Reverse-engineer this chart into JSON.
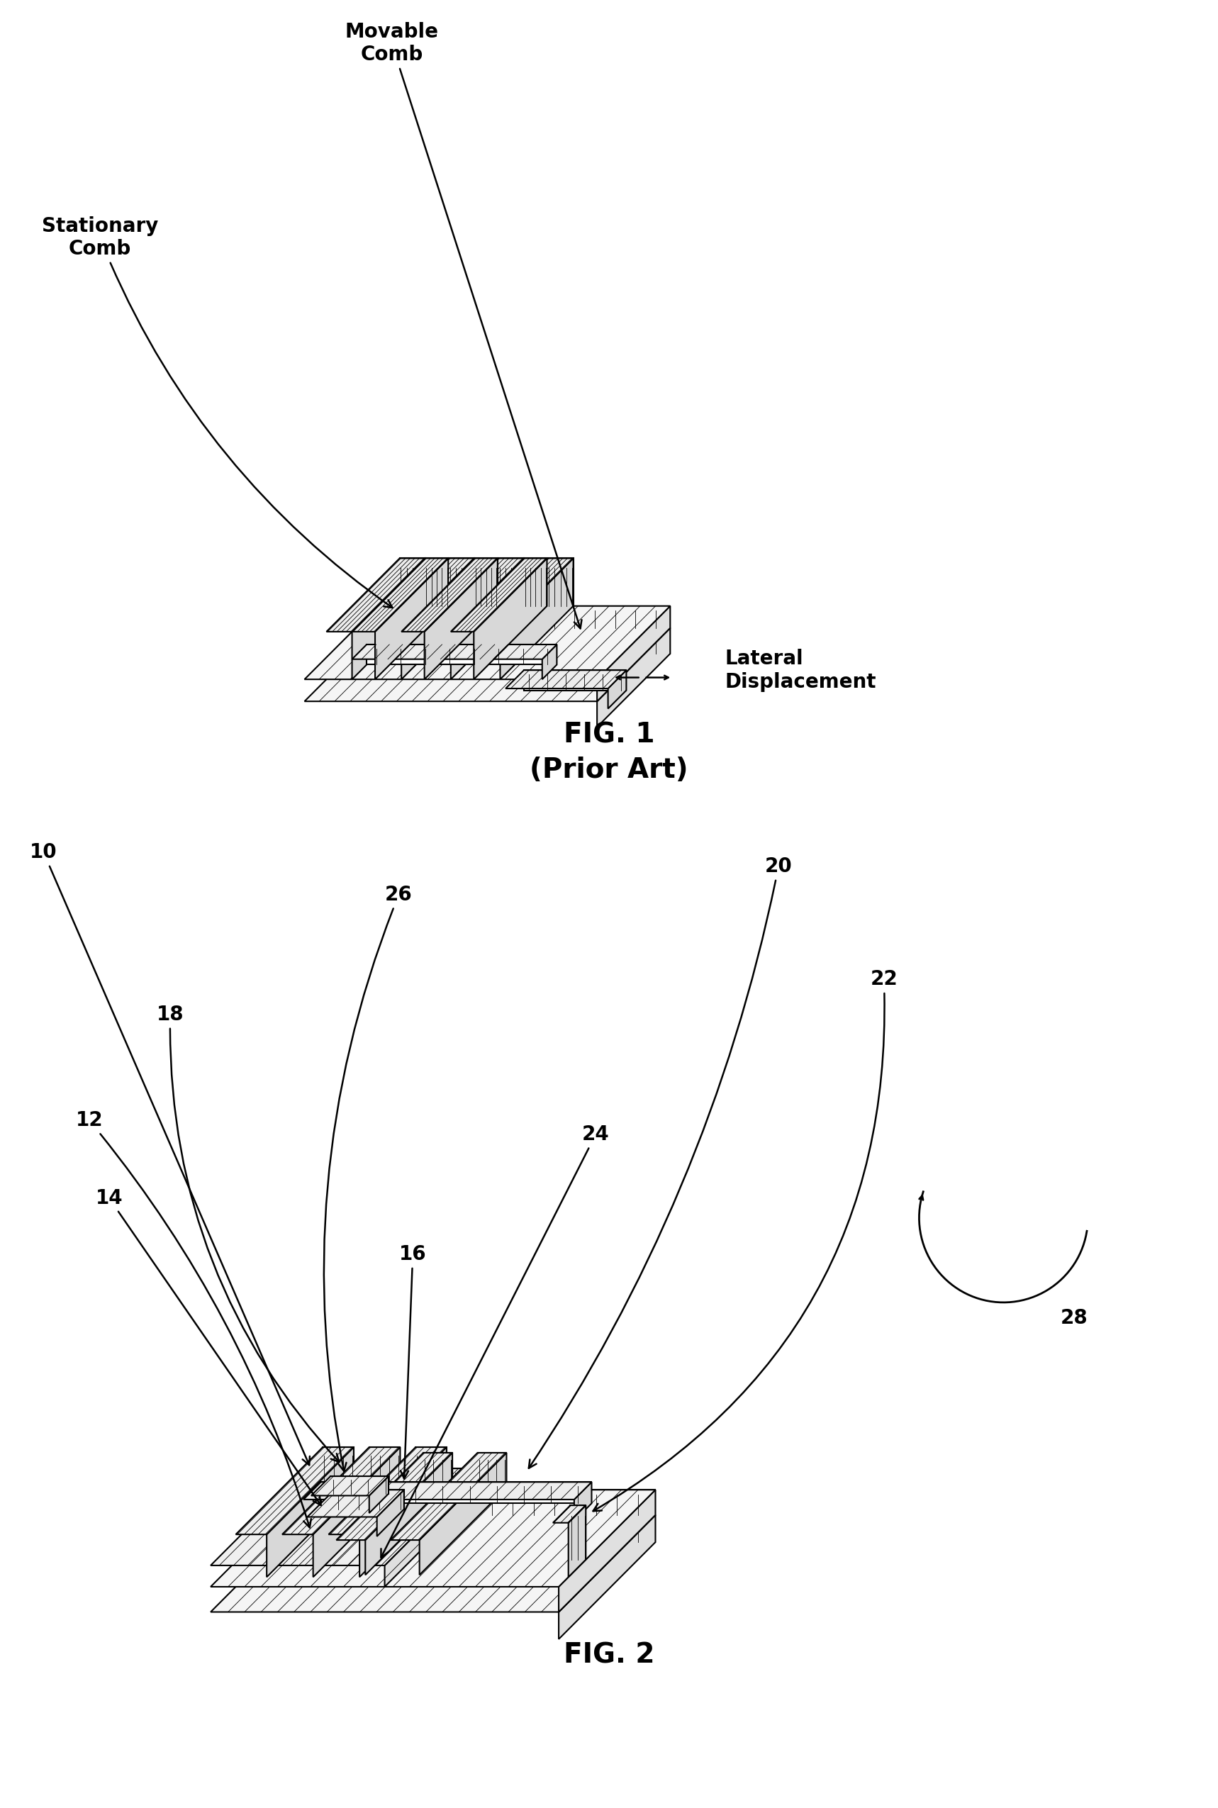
{
  "fig1_title": "FIG. 1",
  "fig1_subtitle": "(Prior Art)",
  "fig2_title": "FIG. 2",
  "fig1_labels": {
    "movable_comb": "Movable\nComb",
    "stationary_comb": "Stationary\nComb",
    "lateral_displacement": "Lateral\nDisplacement"
  },
  "fig2_labels": {
    "10": "10",
    "12": "12",
    "14": "14",
    "16": "16",
    "18": "18",
    "20": "20",
    "22": "22",
    "24": "24",
    "26": "26",
    "28": "28"
  },
  "line_color": "#000000",
  "bg_color": "#ffffff",
  "lw": 1.5
}
